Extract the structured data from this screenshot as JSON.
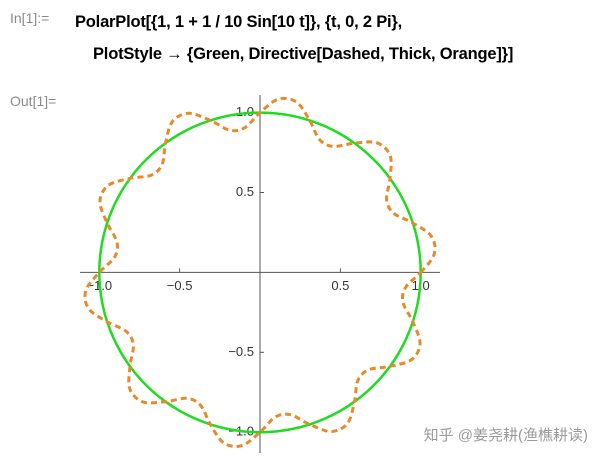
{
  "header": {
    "in_label": "In[1]:=",
    "code": [
      "PolarPlot[{1, 1 + 1 / 10 Sin[10 t]}, {t, 0, 2 Pi},",
      "PlotStyle → {Green, Directive[Dashed, Thick, Orange]}]"
    ],
    "out_label": "Out[1]="
  },
  "watermark": "知乎 @姜尧耕(渔樵耕读)",
  "chart_data": {
    "type": "polar",
    "theta": [
      0,
      6,
      12,
      18,
      24,
      30,
      36,
      42,
      48,
      54,
      60,
      66,
      72,
      78,
      84,
      90,
      96,
      102,
      108,
      114,
      120,
      126,
      132,
      138,
      144,
      150,
      156,
      162,
      168,
      174,
      180,
      186,
      192,
      198,
      204,
      210,
      216,
      222,
      228,
      234,
      240,
      246,
      252,
      258,
      264,
      270,
      276,
      282,
      288,
      294,
      300,
      306,
      312,
      318,
      324,
      330,
      336,
      342,
      348,
      354
    ],
    "series": [
      {
        "color": "#1edc1e",
        "dashed": false,
        "values": [
          1,
          1,
          1,
          1,
          1,
          1,
          1,
          1,
          1,
          1,
          1,
          1,
          1,
          1,
          1,
          1,
          1,
          1,
          1,
          1,
          1,
          1,
          1,
          1,
          1,
          1,
          1,
          1,
          1,
          1,
          1,
          1,
          1,
          1,
          1,
          1,
          1,
          1,
          1,
          1,
          1,
          1,
          1,
          1,
          1,
          1,
          1,
          1,
          1,
          1,
          1,
          1,
          1,
          1,
          1,
          1,
          1,
          1,
          1,
          1
        ]
      },
      {
        "color": "#e8892a",
        "dashed": true,
        "values": [
          1,
          1.09,
          1.09,
          1,
          0.91,
          0.91,
          1,
          1.09,
          1.09,
          1,
          0.91,
          0.91,
          1,
          1.09,
          1.09,
          1,
          0.91,
          0.91,
          1,
          1.09,
          1.09,
          1,
          0.91,
          0.91,
          1,
          1.09,
          1.09,
          1,
          0.91,
          0.91,
          1,
          1.09,
          1.09,
          1,
          0.91,
          0.91,
          1,
          1.09,
          1.09,
          1,
          0.91,
          0.91,
          1,
          1.09,
          1.09,
          1,
          0.91,
          0.91,
          1,
          1.09,
          1.09,
          1,
          0.91,
          0.91,
          1,
          1.09,
          1.09,
          1,
          0.91,
          0.91
        ]
      }
    ],
    "xlim": [
      -1.12,
      1.12
    ],
    "ylim": [
      -1.13,
      1.11
    ],
    "xticks": [
      {
        "value": -1,
        "label": "−1.0"
      },
      {
        "value": -0.5,
        "label": "−0.5"
      },
      {
        "value": 0.5,
        "label": "0.5"
      },
      {
        "value": 1,
        "label": "1.0"
      }
    ],
    "yticks": [
      {
        "value": 1,
        "label": "1.0"
      },
      {
        "value": 0.5,
        "label": "0.5"
      },
      {
        "value": -0.5,
        "label": "−0.5"
      },
      {
        "value": -1,
        "label": "−1.0"
      }
    ]
  }
}
